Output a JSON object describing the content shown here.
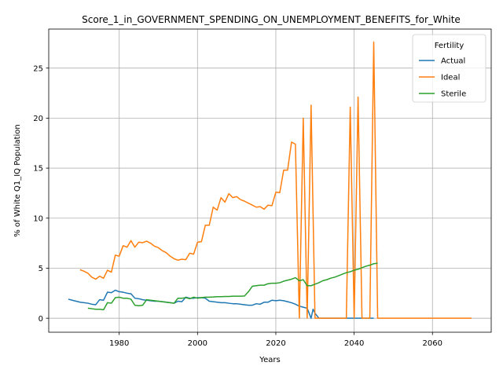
{
  "chart_data": {
    "type": "line",
    "title": "Score_1_in_GOVERNMENT_SPENDING_ON_UNEMPLOYMENT_BENEFITS_for_White",
    "xlabel": "Years",
    "ylabel": "% of White Q1_IQ Population",
    "xlim": [
      1962,
      2075
    ],
    "ylim": [
      -1.4,
      28.9
    ],
    "xticks": [
      1980,
      2000,
      2020,
      2040,
      2060
    ],
    "yticks": [
      0,
      5,
      10,
      15,
      20,
      25
    ],
    "grid": true,
    "legend": {
      "title": "Fertility",
      "position": "top-right"
    },
    "series": [
      {
        "name": "Actual",
        "color": "#1f77b4",
        "points": [
          [
            1967,
            1.9
          ],
          [
            1968,
            1.8
          ],
          [
            1969,
            1.7
          ],
          [
            1970,
            1.6
          ],
          [
            1971,
            1.55
          ],
          [
            1972,
            1.5
          ],
          [
            1973,
            1.4
          ],
          [
            1974,
            1.35
          ],
          [
            1975,
            1.85
          ],
          [
            1976,
            1.8
          ],
          [
            1977,
            2.6
          ],
          [
            1978,
            2.55
          ],
          [
            1979,
            2.8
          ],
          [
            1980,
            2.65
          ],
          [
            1981,
            2.6
          ],
          [
            1982,
            2.5
          ],
          [
            1983,
            2.45
          ],
          [
            1984,
            2.0
          ],
          [
            1985,
            1.95
          ],
          [
            1986,
            1.85
          ],
          [
            1987,
            1.8
          ],
          [
            1988,
            1.75
          ],
          [
            1989,
            1.7
          ],
          [
            1990,
            1.7
          ],
          [
            1991,
            1.65
          ],
          [
            1992,
            1.6
          ],
          [
            1993,
            1.55
          ],
          [
            1994,
            1.5
          ],
          [
            1995,
            1.7
          ],
          [
            1996,
            1.65
          ],
          [
            1997,
            2.1
          ],
          [
            1998,
            2.0
          ],
          [
            1999,
            2.0
          ],
          [
            2000,
            2.05
          ],
          [
            2001,
            2.05
          ],
          [
            2002,
            2.0
          ],
          [
            2003,
            1.7
          ],
          [
            2004,
            1.65
          ],
          [
            2005,
            1.6
          ],
          [
            2006,
            1.55
          ],
          [
            2007,
            1.55
          ],
          [
            2008,
            1.5
          ],
          [
            2009,
            1.45
          ],
          [
            2010,
            1.45
          ],
          [
            2011,
            1.4
          ],
          [
            2012,
            1.35
          ],
          [
            2013,
            1.3
          ],
          [
            2014,
            1.3
          ],
          [
            2015,
            1.45
          ],
          [
            2016,
            1.4
          ],
          [
            2017,
            1.6
          ],
          [
            2018,
            1.6
          ],
          [
            2019,
            1.8
          ],
          [
            2020,
            1.75
          ],
          [
            2021,
            1.8
          ],
          [
            2022,
            1.75
          ],
          [
            2023,
            1.65
          ],
          [
            2024,
            1.55
          ],
          [
            2025,
            1.4
          ],
          [
            2026,
            1.2
          ],
          [
            2027,
            1.1
          ],
          [
            2028,
            1.0
          ],
          [
            2029,
            0.0
          ],
          [
            2029.5,
            0.9
          ],
          [
            2030,
            0.5
          ],
          [
            2031,
            0.0
          ],
          [
            2032,
            0.0
          ],
          [
            2035,
            0.0
          ],
          [
            2040,
            0.0
          ],
          [
            2045,
            0.0
          ]
        ]
      },
      {
        "name": "Ideal",
        "color": "#ff7f0e",
        "points": [
          [
            1970,
            4.85
          ],
          [
            1971,
            4.7
          ],
          [
            1972,
            4.5
          ],
          [
            1973,
            4.1
          ],
          [
            1974,
            3.9
          ],
          [
            1975,
            4.2
          ],
          [
            1976,
            4.0
          ],
          [
            1977,
            4.8
          ],
          [
            1978,
            4.6
          ],
          [
            1979,
            6.3
          ],
          [
            1980,
            6.2
          ],
          [
            1981,
            7.25
          ],
          [
            1982,
            7.1
          ],
          [
            1983,
            7.75
          ],
          [
            1984,
            7.1
          ],
          [
            1985,
            7.6
          ],
          [
            1986,
            7.55
          ],
          [
            1987,
            7.7
          ],
          [
            1988,
            7.5
          ],
          [
            1989,
            7.2
          ],
          [
            1990,
            7.05
          ],
          [
            1991,
            6.75
          ],
          [
            1992,
            6.55
          ],
          [
            1993,
            6.2
          ],
          [
            1994,
            5.95
          ],
          [
            1995,
            5.8
          ],
          [
            1996,
            5.9
          ],
          [
            1997,
            5.85
          ],
          [
            1998,
            6.5
          ],
          [
            1999,
            6.4
          ],
          [
            2000,
            7.6
          ],
          [
            2001,
            7.65
          ],
          [
            2002,
            9.3
          ],
          [
            2003,
            9.3
          ],
          [
            2004,
            11.1
          ],
          [
            2005,
            10.8
          ],
          [
            2006,
            12.05
          ],
          [
            2007,
            11.6
          ],
          [
            2008,
            12.45
          ],
          [
            2009,
            12.05
          ],
          [
            2010,
            12.15
          ],
          [
            2011,
            11.85
          ],
          [
            2012,
            11.7
          ],
          [
            2013,
            11.5
          ],
          [
            2014,
            11.3
          ],
          [
            2015,
            11.1
          ],
          [
            2016,
            11.15
          ],
          [
            2017,
            10.9
          ],
          [
            2018,
            11.3
          ],
          [
            2019,
            11.25
          ],
          [
            2020,
            12.6
          ],
          [
            2021,
            12.55
          ],
          [
            2022,
            14.8
          ],
          [
            2023,
            14.8
          ],
          [
            2024,
            17.6
          ],
          [
            2025,
            17.4
          ],
          [
            2026,
            0.0
          ],
          [
            2027,
            20.0
          ],
          [
            2028,
            0.0
          ],
          [
            2029,
            21.3
          ],
          [
            2030,
            0.0
          ],
          [
            2031,
            0.0
          ],
          [
            2035,
            0.0
          ],
          [
            2038,
            0.0
          ],
          [
            2039,
            21.1
          ],
          [
            2040,
            0.0
          ],
          [
            2041,
            22.1
          ],
          [
            2042,
            0.0
          ],
          [
            2044,
            0.0
          ],
          [
            2045,
            27.6
          ],
          [
            2046,
            0.0
          ],
          [
            2050,
            0.0
          ],
          [
            2060,
            0.0
          ],
          [
            2070,
            0.0
          ]
        ]
      },
      {
        "name": "Sterile",
        "color": "#2ca02c",
        "points": [
          [
            1972,
            1.0
          ],
          [
            1973,
            0.95
          ],
          [
            1974,
            0.9
          ],
          [
            1975,
            0.9
          ],
          [
            1976,
            0.85
          ],
          [
            1977,
            1.55
          ],
          [
            1978,
            1.5
          ],
          [
            1979,
            2.05
          ],
          [
            1980,
            2.1
          ],
          [
            1981,
            2.0
          ],
          [
            1982,
            2.0
          ],
          [
            1983,
            1.9
          ],
          [
            1984,
            1.3
          ],
          [
            1985,
            1.25
          ],
          [
            1986,
            1.3
          ],
          [
            1987,
            1.85
          ],
          [
            1988,
            1.8
          ],
          [
            1989,
            1.75
          ],
          [
            1990,
            1.7
          ],
          [
            1991,
            1.65
          ],
          [
            1992,
            1.6
          ],
          [
            1993,
            1.55
          ],
          [
            1994,
            1.5
          ],
          [
            1995,
            2.0
          ],
          [
            1996,
            2.0
          ],
          [
            1997,
            2.05
          ],
          [
            1998,
            1.95
          ],
          [
            1999,
            2.1
          ],
          [
            2000,
            2.0
          ],
          [
            2001,
            2.05
          ],
          [
            2002,
            2.1
          ],
          [
            2003,
            2.1
          ],
          [
            2004,
            2.12
          ],
          [
            2005,
            2.15
          ],
          [
            2006,
            2.15
          ],
          [
            2007,
            2.17
          ],
          [
            2008,
            2.17
          ],
          [
            2009,
            2.2
          ],
          [
            2010,
            2.2
          ],
          [
            2011,
            2.2
          ],
          [
            2012,
            2.22
          ],
          [
            2013,
            2.65
          ],
          [
            2014,
            3.2
          ],
          [
            2015,
            3.25
          ],
          [
            2016,
            3.3
          ],
          [
            2017,
            3.3
          ],
          [
            2018,
            3.45
          ],
          [
            2019,
            3.5
          ],
          [
            2020,
            3.5
          ],
          [
            2021,
            3.55
          ],
          [
            2022,
            3.7
          ],
          [
            2023,
            3.8
          ],
          [
            2024,
            3.9
          ],
          [
            2025,
            4.05
          ],
          [
            2026,
            3.75
          ],
          [
            2027,
            3.85
          ],
          [
            2028,
            3.25
          ],
          [
            2029,
            3.25
          ],
          [
            2030,
            3.4
          ],
          [
            2031,
            3.55
          ],
          [
            2032,
            3.75
          ],
          [
            2033,
            3.85
          ],
          [
            2034,
            4.0
          ],
          [
            2035,
            4.1
          ],
          [
            2036,
            4.25
          ],
          [
            2037,
            4.4
          ],
          [
            2038,
            4.55
          ],
          [
            2039,
            4.65
          ],
          [
            2040,
            4.8
          ],
          [
            2041,
            4.9
          ],
          [
            2042,
            5.05
          ],
          [
            2043,
            5.2
          ],
          [
            2044,
            5.3
          ],
          [
            2045,
            5.45
          ],
          [
            2046,
            5.5
          ]
        ]
      }
    ]
  }
}
